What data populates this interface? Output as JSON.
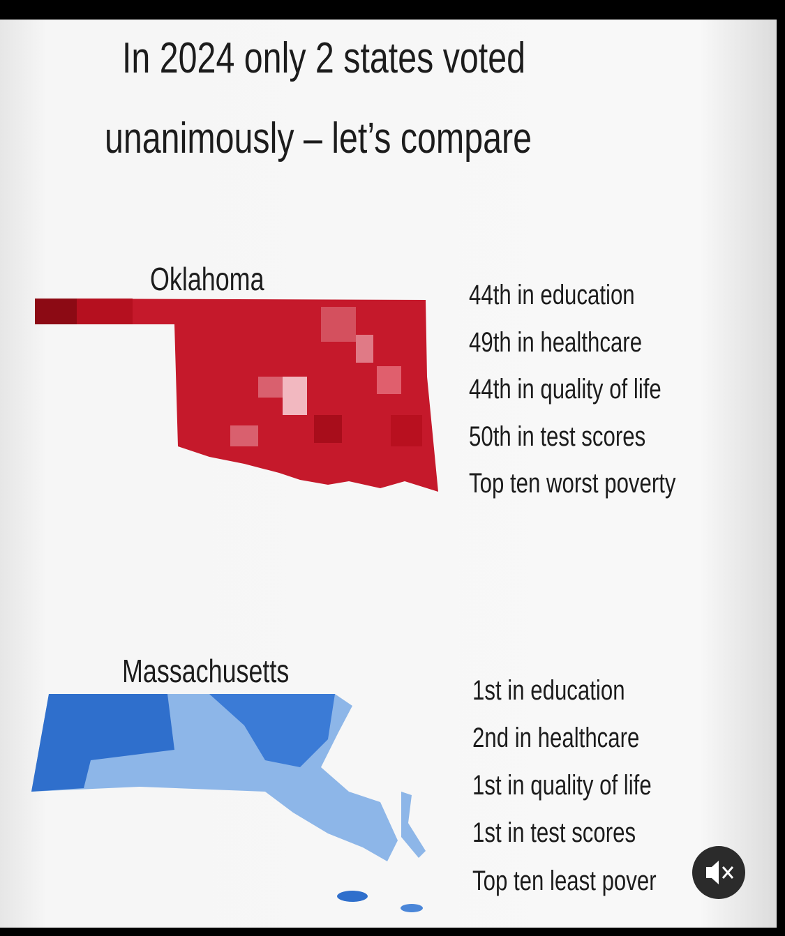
{
  "header": {
    "title_lines": [
      "In 2024 only 2 states voted",
      "unanimously – let’s compare"
    ]
  },
  "sections": [
    {
      "name": "Oklahoma",
      "stats": [
        "44th in education",
        "49th in healthcare",
        "44th in quality of life",
        "50th in test scores",
        "Top ten worst poverty"
      ]
    },
    {
      "name": "Massachusetts",
      "stats": [
        "1st in education",
        "2nd in healthcare",
        "1st in quality of life",
        "1st in test scores",
        "Top ten least pover"
      ]
    }
  ]
}
